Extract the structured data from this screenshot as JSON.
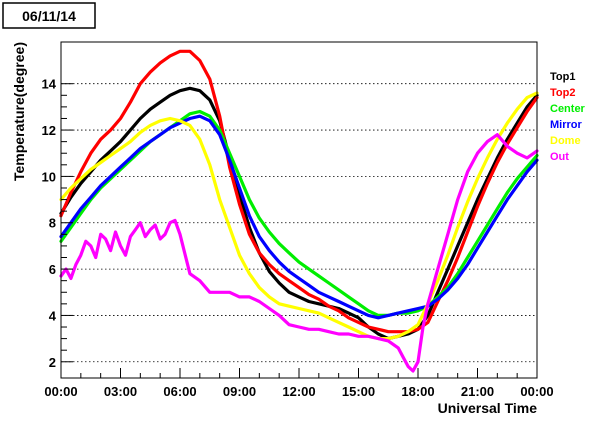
{
  "date_label": "06/11/14",
  "chart_data": {
    "type": "line",
    "title": "",
    "xlabel": "Universal Time",
    "ylabel": "Temperature(degree)",
    "xlim": [
      0,
      24
    ],
    "ylim": [
      1.3,
      15.8
    ],
    "x_ticks": [
      {
        "value": 0,
        "label": "00:00"
      },
      {
        "value": 3,
        "label": "03:00"
      },
      {
        "value": 6,
        "label": "06:00"
      },
      {
        "value": 9,
        "label": "09:00"
      },
      {
        "value": 12,
        "label": "12:00"
      },
      {
        "value": 15,
        "label": "15:00"
      },
      {
        "value": 18,
        "label": "18:00"
      },
      {
        "value": 21,
        "label": "21:00"
      },
      {
        "value": 24,
        "label": "00:00"
      }
    ],
    "y_ticks": [
      {
        "value": 2,
        "label": "2"
      },
      {
        "value": 4,
        "label": "4"
      },
      {
        "value": 6,
        "label": "6"
      },
      {
        "value": 8,
        "label": "8"
      },
      {
        "value": 10,
        "label": "10"
      },
      {
        "value": 12,
        "label": "12"
      },
      {
        "value": 14,
        "label": "14"
      }
    ],
    "grid": {
      "horizontal": true,
      "vertical": false,
      "style": "dotted"
    },
    "legend_position": "right",
    "series": [
      {
        "name": "Top1",
        "color": "#000000",
        "x": [
          0,
          0.5,
          1,
          1.5,
          2,
          2.5,
          3,
          3.5,
          4,
          4.5,
          5,
          5.5,
          6,
          6.5,
          7,
          7.5,
          8,
          8.5,
          9,
          9.5,
          10,
          10.5,
          11,
          11.5,
          12,
          12.5,
          13,
          13.5,
          14,
          14.5,
          15,
          15.5,
          16,
          16.5,
          17,
          17.5,
          18,
          18.5,
          19,
          19.5,
          20,
          20.5,
          21,
          21.5,
          22,
          22.5,
          23,
          23.5,
          24
        ],
        "y": [
          8.4,
          9.1,
          9.7,
          10.2,
          10.7,
          11.1,
          11.5,
          12.0,
          12.5,
          12.9,
          13.2,
          13.5,
          13.7,
          13.8,
          13.7,
          13.3,
          12.4,
          10.8,
          9.2,
          7.8,
          6.7,
          5.9,
          5.4,
          5.0,
          4.8,
          4.6,
          4.5,
          4.4,
          4.3,
          4.1,
          3.9,
          3.5,
          3.2,
          3.0,
          3.1,
          3.2,
          3.4,
          4.0,
          5.0,
          6.0,
          7.0,
          8.0,
          9.0,
          9.9,
          10.8,
          11.6,
          12.3,
          13.0,
          13.5
        ]
      },
      {
        "name": "Top2",
        "color": "#ff0000",
        "x": [
          0,
          0.5,
          1,
          1.5,
          2,
          2.5,
          3,
          3.5,
          4,
          4.5,
          5,
          5.5,
          6,
          6.5,
          7,
          7.5,
          8,
          8.5,
          9,
          9.5,
          10,
          10.5,
          11,
          11.5,
          12,
          12.5,
          13,
          13.5,
          14,
          14.5,
          15,
          15.5,
          16,
          16.5,
          17,
          17.5,
          18,
          18.5,
          19,
          19.5,
          20,
          20.5,
          21,
          21.5,
          22,
          22.5,
          23,
          23.5,
          24
        ],
        "y": [
          8.3,
          9.3,
          10.2,
          11.0,
          11.6,
          12.0,
          12.5,
          13.2,
          14.0,
          14.5,
          14.9,
          15.2,
          15.4,
          15.4,
          15.0,
          14.2,
          12.6,
          10.4,
          8.8,
          7.5,
          6.7,
          6.2,
          5.8,
          5.5,
          5.2,
          4.9,
          4.7,
          4.4,
          4.2,
          3.9,
          3.7,
          3.5,
          3.4,
          3.3,
          3.3,
          3.3,
          3.4,
          3.7,
          4.6,
          5.5,
          6.5,
          7.6,
          8.7,
          9.7,
          10.6,
          11.4,
          12.1,
          12.8,
          13.4
        ]
      },
      {
        "name": "Center",
        "color": "#00ee00",
        "x": [
          0,
          0.5,
          1,
          1.5,
          2,
          2.5,
          3,
          3.5,
          4,
          4.5,
          5,
          5.5,
          6,
          6.5,
          7,
          7.5,
          8,
          8.5,
          9,
          9.5,
          10,
          10.5,
          11,
          11.5,
          12,
          12.5,
          13,
          13.5,
          14,
          14.5,
          15,
          15.5,
          16,
          16.5,
          17,
          17.5,
          18,
          18.5,
          19,
          19.5,
          20,
          20.5,
          21,
          21.5,
          22,
          22.5,
          23,
          23.5,
          24
        ],
        "y": [
          7.2,
          7.8,
          8.4,
          9.0,
          9.5,
          9.9,
          10.3,
          10.7,
          11.1,
          11.5,
          11.8,
          12.1,
          12.4,
          12.7,
          12.8,
          12.6,
          12.0,
          11.0,
          10.0,
          9.0,
          8.2,
          7.6,
          7.1,
          6.7,
          6.3,
          6.0,
          5.7,
          5.4,
          5.1,
          4.8,
          4.5,
          4.2,
          4.0,
          4.0,
          4.1,
          4.1,
          4.2,
          4.4,
          4.8,
          5.2,
          5.8,
          6.5,
          7.2,
          7.9,
          8.6,
          9.3,
          9.9,
          10.4,
          10.9
        ]
      },
      {
        "name": "Mirror",
        "color": "#0000ff",
        "x": [
          0,
          0.5,
          1,
          1.5,
          2,
          2.5,
          3,
          3.5,
          4,
          4.5,
          5,
          5.5,
          6,
          6.5,
          7,
          7.5,
          8,
          8.5,
          9,
          9.5,
          10,
          10.5,
          11,
          11.5,
          12,
          12.5,
          13,
          13.5,
          14,
          14.5,
          15,
          15.5,
          16,
          16.5,
          17,
          17.5,
          18,
          18.5,
          19,
          19.5,
          20,
          20.5,
          21,
          21.5,
          22,
          22.5,
          23,
          23.5,
          24
        ],
        "y": [
          7.4,
          8.0,
          8.6,
          9.1,
          9.6,
          10.0,
          10.4,
          10.8,
          11.2,
          11.5,
          11.8,
          12.1,
          12.3,
          12.5,
          12.6,
          12.4,
          11.8,
          10.7,
          9.5,
          8.3,
          7.4,
          6.8,
          6.3,
          5.9,
          5.6,
          5.3,
          5.0,
          4.8,
          4.6,
          4.4,
          4.2,
          4.0,
          3.9,
          4.0,
          4.1,
          4.2,
          4.3,
          4.4,
          4.7,
          5.1,
          5.6,
          6.2,
          6.9,
          7.6,
          8.3,
          9.0,
          9.6,
          10.2,
          10.7
        ]
      },
      {
        "name": "Dome",
        "color": "#ffff00",
        "x": [
          0,
          0.5,
          1,
          1.5,
          2,
          2.5,
          3,
          3.5,
          4,
          4.5,
          5,
          5.5,
          6,
          6.5,
          7,
          7.5,
          8,
          8.5,
          9,
          9.5,
          10,
          10.5,
          11,
          11.5,
          12,
          12.5,
          13,
          13.5,
          14,
          14.5,
          15,
          15.5,
          16,
          16.5,
          17,
          17.5,
          18,
          18.5,
          19,
          19.5,
          20,
          20.5,
          21,
          21.5,
          22,
          22.5,
          23,
          23.5,
          24
        ],
        "y": [
          9.0,
          9.5,
          9.9,
          10.3,
          10.6,
          10.9,
          11.2,
          11.5,
          11.9,
          12.2,
          12.4,
          12.5,
          12.4,
          12.2,
          11.6,
          10.5,
          9.0,
          7.8,
          6.6,
          5.8,
          5.2,
          4.8,
          4.5,
          4.4,
          4.3,
          4.2,
          4.1,
          3.9,
          3.7,
          3.5,
          3.3,
          3.1,
          3.0,
          3.0,
          3.1,
          3.3,
          3.6,
          4.5,
          5.5,
          6.6,
          7.8,
          8.9,
          9.9,
          10.8,
          11.6,
          12.3,
          12.9,
          13.4,
          13.6
        ]
      },
      {
        "name": "Out",
        "color": "#ff00ff",
        "x": [
          0,
          0.25,
          0.5,
          0.75,
          1,
          1.25,
          1.5,
          1.75,
          2,
          2.25,
          2.5,
          2.75,
          3,
          3.25,
          3.5,
          3.75,
          4,
          4.25,
          4.5,
          4.75,
          5,
          5.25,
          5.5,
          5.75,
          6,
          6.5,
          7,
          7.5,
          8,
          8.5,
          9,
          9.5,
          10,
          10.5,
          11,
          11.5,
          12,
          12.5,
          13,
          13.5,
          14,
          14.5,
          15,
          15.5,
          16,
          16.5,
          17,
          17.25,
          17.5,
          17.75,
          18,
          18.25,
          18.5,
          19,
          19.5,
          20,
          20.5,
          21,
          21.5,
          22,
          22.5,
          23,
          23.5,
          24
        ],
        "y": [
          5.7,
          6.0,
          5.6,
          6.2,
          6.6,
          7.2,
          7.0,
          6.5,
          7.5,
          7.3,
          6.8,
          7.6,
          7.0,
          6.6,
          7.4,
          7.7,
          8.0,
          7.4,
          7.7,
          7.9,
          7.3,
          7.5,
          8.0,
          8.1,
          7.5,
          5.8,
          5.5,
          5.0,
          5.0,
          5.0,
          4.8,
          4.8,
          4.6,
          4.3,
          4.0,
          3.6,
          3.5,
          3.4,
          3.4,
          3.3,
          3.2,
          3.2,
          3.1,
          3.1,
          3.0,
          2.9,
          2.6,
          2.2,
          1.8,
          1.6,
          2.0,
          3.5,
          4.5,
          6.0,
          7.5,
          9.0,
          10.2,
          11.0,
          11.5,
          11.8,
          11.3,
          11.0,
          10.8,
          11.1
        ]
      }
    ]
  }
}
